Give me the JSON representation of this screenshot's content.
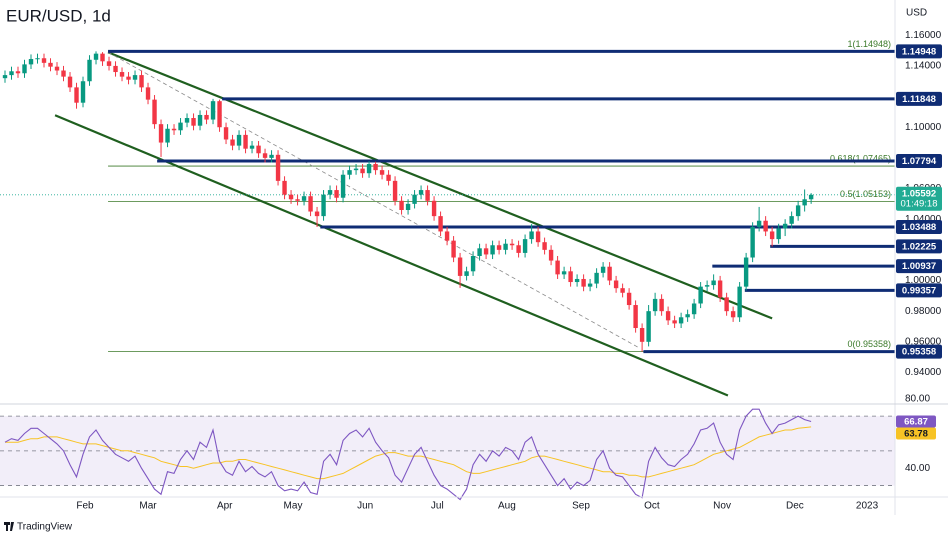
{
  "chart_data": [
    {
      "type": "candlestick",
      "title": "EUR/USD, 1d",
      "currency": "USD",
      "brand": "TradingView",
      "up_color": "#089981",
      "down_color": "#f23645",
      "xlim": [
        -0.77,
        136.9
      ],
      "xticks": [
        {
          "value": 12.3,
          "label": "Feb"
        },
        {
          "value": 22,
          "label": "Mar"
        },
        {
          "value": 33.8,
          "label": "Apr"
        },
        {
          "value": 44.3,
          "label": "May"
        },
        {
          "value": 55.4,
          "label": "Jun"
        },
        {
          "value": 66.5,
          "label": "Jul"
        },
        {
          "value": 77.2,
          "label": "Aug"
        },
        {
          "value": 88.6,
          "label": "Sep"
        },
        {
          "value": 99.5,
          "label": "Oct"
        },
        {
          "value": 110.3,
          "label": "Nov"
        },
        {
          "value": 121.5,
          "label": "Dec"
        },
        {
          "value": 132.6,
          "label": "2023"
        }
      ],
      "ylim": [
        0.924,
        1.183
      ],
      "yticks": [
        {
          "value": 1.16,
          "label": "1.16000"
        },
        {
          "value": 1.14,
          "label": "1.14000"
        },
        {
          "value": 1.1,
          "label": "1.10000"
        },
        {
          "value": 1.06,
          "label": "1.06000"
        },
        {
          "value": 1.04,
          "label": "1.04000"
        },
        {
          "value": 1.0,
          "label": "1.00000"
        },
        {
          "value": 0.98,
          "label": "0.98000"
        },
        {
          "value": 0.96,
          "label": "0.96000"
        },
        {
          "value": 0.94,
          "label": "0.94000"
        }
      ],
      "open": [
        1.132,
        1.134,
        1.1365,
        1.1352,
        1.141,
        1.1445,
        1.145,
        1.142,
        1.1395,
        1.137,
        1.133,
        1.126,
        1.116,
        1.13,
        1.144,
        1.148,
        1.143,
        1.14,
        1.136,
        1.133,
        1.131,
        1.134,
        1.126,
        1.118,
        1.102,
        1.09,
        1.099,
        1.098,
        1.103,
        1.106,
        1.101,
        1.108,
        1.105,
        1.117,
        1.1,
        1.092,
        1.088,
        1.095,
        1.086,
        1.088,
        1.083,
        1.08,
        1.082,
        1.065,
        1.056,
        1.053,
        1.052,
        1.055,
        1.045,
        1.042,
        1.056,
        1.059,
        1.054,
        1.069,
        1.072,
        1.073,
        1.07,
        1.076,
        1.072,
        1.069,
        1.065,
        1.052,
        1.046,
        1.05,
        1.056,
        1.059,
        1.052,
        1.042,
        1.032,
        1.026,
        1.015,
        1.003,
        1.006,
        1.016,
        1.021,
        1.017,
        1.023,
        1.02,
        1.024,
        1.023,
        1.018,
        1.027,
        1.032,
        1.025,
        1.02,
        1.013,
        1.004,
        1.006,
        0.999,
        1.001,
        0.996,
        0.998,
        1.005,
        1.009,
        1.0,
        0.995,
        0.992,
        0.984,
        0.969,
        0.96,
        0.98,
        0.988,
        0.98,
        0.974,
        0.972,
        0.976,
        0.978,
        0.985,
        0.996,
        0.997,
        1.0,
        0.989,
        0.98,
        0.976,
        0.996,
        1.015,
        1.035,
        1.039,
        1.032,
        1.027,
        1.034,
        1.037,
        1.042,
        1.049,
        1.053
      ],
      "high": [
        1.137,
        1.1395,
        1.1395,
        1.144,
        1.1475,
        1.148,
        1.148,
        1.145,
        1.1425,
        1.14,
        1.136,
        1.129,
        1.133,
        1.147,
        1.1495,
        1.149,
        1.146,
        1.143,
        1.139,
        1.136,
        1.137,
        1.137,
        1.129,
        1.121,
        1.105,
        1.102,
        1.102,
        1.106,
        1.109,
        1.109,
        1.111,
        1.111,
        1.1185,
        1.118,
        1.103,
        1.095,
        1.098,
        1.098,
        1.091,
        1.091,
        1.086,
        1.085,
        1.085,
        1.068,
        1.059,
        1.056,
        1.058,
        1.058,
        1.048,
        1.059,
        1.062,
        1.062,
        1.072,
        1.075,
        1.076,
        1.076,
        1.0779,
        1.0775,
        1.075,
        1.072,
        1.068,
        1.055,
        1.053,
        1.059,
        1.062,
        1.062,
        1.055,
        1.045,
        1.035,
        1.029,
        1.018,
        1.009,
        1.019,
        1.024,
        1.024,
        1.026,
        1.026,
        1.027,
        1.027,
        1.026,
        1.03,
        1.0368,
        1.035,
        1.028,
        1.023,
        1.016,
        1.009,
        1.009,
        1.004,
        1.004,
        1.001,
        1.008,
        1.012,
        1.012,
        1.003,
        0.998,
        0.995,
        0.987,
        0.972,
        0.984,
        0.992,
        0.991,
        0.983,
        0.977,
        0.979,
        0.981,
        0.988,
        0.999,
        1.0,
        1.004,
        1.003,
        0.992,
        0.983,
        0.999,
        1.018,
        1.038,
        1.048,
        1.042,
        1.035,
        1.037,
        1.04,
        1.045,
        1.052,
        1.0594,
        1.057
      ],
      "low": [
        1.129,
        1.131,
        1.1322,
        1.1322,
        1.138,
        1.1415,
        1.139,
        1.1365,
        1.134,
        1.13,
        1.123,
        1.1121,
        1.113,
        1.127,
        1.141,
        1.14,
        1.137,
        1.133,
        1.13,
        1.128,
        1.128,
        1.123,
        1.115,
        1.099,
        1.0806,
        1.087,
        1.095,
        1.095,
        1.1,
        1.098,
        1.098,
        1.102,
        1.102,
        1.097,
        1.089,
        1.085,
        1.085,
        1.083,
        1.083,
        1.08,
        1.077,
        1.077,
        1.062,
        1.053,
        1.05,
        1.049,
        1.049,
        1.042,
        1.0349,
        1.039,
        1.053,
        1.051,
        1.051,
        1.066,
        1.069,
        1.067,
        1.067,
        1.069,
        1.066,
        1.062,
        1.049,
        1.043,
        1.043,
        1.047,
        1.053,
        1.049,
        1.039,
        1.029,
        1.023,
        1.012,
        0.9952,
        1.0,
        1.003,
        1.013,
        1.014,
        1.014,
        1.017,
        1.017,
        1.02,
        1.015,
        1.015,
        1.024,
        1.022,
        1.017,
        1.01,
        1.001,
        1.001,
        0.996,
        0.996,
        0.993,
        0.993,
        0.995,
        1.002,
        0.997,
        0.992,
        0.989,
        0.981,
        0.966,
        0.9536,
        0.957,
        0.977,
        0.977,
        0.971,
        0.969,
        0.969,
        0.973,
        0.975,
        0.982,
        0.993,
        0.994,
        0.986,
        0.977,
        0.973,
        0.973,
        0.9935,
        1.012,
        1.032,
        1.029,
        1.0222,
        1.024,
        1.029,
        1.034,
        1.039,
        1.045,
        1.05
      ],
      "close": [
        1.134,
        1.1365,
        1.1352,
        1.141,
        1.1445,
        1.145,
        1.142,
        1.1395,
        1.137,
        1.133,
        1.126,
        1.116,
        1.13,
        1.144,
        1.148,
        1.143,
        1.14,
        1.136,
        1.133,
        1.131,
        1.134,
        1.126,
        1.118,
        1.102,
        1.09,
        1.099,
        1.098,
        1.103,
        1.106,
        1.101,
        1.108,
        1.105,
        1.117,
        1.1,
        1.092,
        1.088,
        1.095,
        1.086,
        1.088,
        1.083,
        1.08,
        1.082,
        1.065,
        1.056,
        1.053,
        1.052,
        1.055,
        1.045,
        1.042,
        1.056,
        1.059,
        1.054,
        1.069,
        1.072,
        1.073,
        1.07,
        1.076,
        1.072,
        1.069,
        1.065,
        1.052,
        1.046,
        1.05,
        1.056,
        1.059,
        1.052,
        1.042,
        1.032,
        1.026,
        1.015,
        1.003,
        1.006,
        1.016,
        1.021,
        1.017,
        1.023,
        1.02,
        1.024,
        1.023,
        1.018,
        1.027,
        1.032,
        1.025,
        1.02,
        1.013,
        1.004,
        1.006,
        0.999,
        1.001,
        0.996,
        0.998,
        1.005,
        1.009,
        1.0,
        0.995,
        0.992,
        0.984,
        0.969,
        0.96,
        0.98,
        0.988,
        0.98,
        0.974,
        0.972,
        0.976,
        0.978,
        0.985,
        0.996,
        0.997,
        1.0,
        0.989,
        0.98,
        0.976,
        0.996,
        1.015,
        1.035,
        1.039,
        1.032,
        1.027,
        1.034,
        1.037,
        1.042,
        1.049,
        1.053,
        1.0559
      ],
      "level_color": "#0f2c74",
      "levels": [
        {
          "value": 1.14948,
          "from": 15.85
        },
        {
          "value": 1.11848,
          "from": 33.4
        },
        {
          "value": 1.07794,
          "from": 23.4
        },
        {
          "value": 1.03488,
          "from": 48.5
        },
        {
          "value": 1.02225,
          "from": 117.7
        },
        {
          "value": 1.00937,
          "from": 108.8
        },
        {
          "value": 0.99357,
          "from": 113.8
        },
        {
          "value": 0.95358,
          "from": 98.2
        }
      ],
      "fib_color": "#3b7a2a",
      "fib": [
        {
          "value": 1.14948,
          "label": "1(1.14948)",
          "from": 15.85
        },
        {
          "value": 1.07465,
          "label": "0.618(1.07465)",
          "from": 15.85
        },
        {
          "value": 1.05153,
          "label": "0.5(1.05153)",
          "from": 15.85
        },
        {
          "value": 0.95358,
          "label": "0(0.95358)",
          "from": 15.85
        }
      ],
      "trendline_color": "#1f5f1f",
      "trendlines": [
        {
          "style": "solid",
          "points": [
            [
              15.85,
              1.1489
            ],
            [
              118,
              0.9753
            ]
          ]
        },
        {
          "style": "solid",
          "points": [
            [
              7.7,
              1.1078
            ],
            [
              111.2,
              0.925
            ]
          ]
        },
        {
          "style": "dashed",
          "points": [
            [
              15.85,
              1.1489
            ],
            [
              97.7,
              0.9557
            ]
          ]
        }
      ],
      "last": {
        "value": 1.05592,
        "countdown": "01:49:18",
        "color": "#22ab94"
      }
    },
    {
      "type": "line",
      "ylim": [
        24,
        81
      ],
      "yticks": [
        {
          "value": 80,
          "label": "80.00"
        },
        {
          "value": 40,
          "label": "40.00"
        }
      ],
      "hlines": [
        70,
        50,
        30
      ],
      "band": [
        30,
        70
      ],
      "series": [
        {
          "color": "#7e57c2",
          "values": [
            55,
            57,
            56,
            60,
            63,
            63,
            60,
            57,
            54,
            50,
            42,
            35,
            48,
            58,
            62,
            56,
            52,
            48,
            46,
            44,
            47,
            40,
            34,
            28,
            25,
            38,
            37,
            45,
            50,
            45,
            55,
            52,
            62,
            44,
            38,
            36,
            44,
            38,
            41,
            37,
            35,
            38,
            30,
            27,
            28,
            27,
            32,
            26,
            25,
            44,
            48,
            42,
            56,
            60,
            62,
            58,
            63,
            55,
            50,
            46,
            36,
            32,
            40,
            48,
            52,
            44,
            36,
            30,
            28,
            25,
            22,
            28,
            42,
            48,
            44,
            50,
            47,
            52,
            50,
            45,
            55,
            58,
            48,
            42,
            36,
            30,
            34,
            28,
            32,
            30,
            33,
            45,
            50,
            40,
            36,
            35,
            30,
            25,
            23,
            44,
            52,
            46,
            42,
            41,
            45,
            48,
            54,
            62,
            63,
            66,
            55,
            48,
            45,
            62,
            70,
            74,
            74,
            66,
            60,
            65,
            66,
            68,
            70,
            68,
            66.87
          ]
        },
        {
          "color": "#f7c325",
          "values": [
            55,
            55,
            55,
            56,
            57,
            57,
            58,
            58,
            58,
            57,
            56,
            55,
            54,
            54,
            54,
            53,
            52,
            51,
            50,
            50,
            49,
            48,
            47,
            46,
            44,
            43,
            42,
            41,
            41,
            40,
            41,
            42,
            43,
            43,
            44,
            44,
            45,
            45,
            44,
            43,
            42,
            41,
            40,
            39,
            38,
            37,
            36,
            35,
            34,
            34,
            35,
            36,
            37,
            39,
            41,
            43,
            45,
            47,
            48,
            49,
            49,
            48,
            47,
            47,
            47,
            46,
            45,
            44,
            43,
            42,
            40,
            38,
            37,
            37,
            38,
            39,
            40,
            41,
            42,
            43,
            44,
            46,
            47,
            47,
            46,
            45,
            44,
            43,
            42,
            41,
            40,
            39,
            38,
            38,
            37,
            37,
            36,
            36,
            35,
            35,
            36,
            37,
            38,
            39,
            40,
            41,
            42,
            44,
            46,
            48,
            49,
            50,
            51,
            52,
            54,
            56,
            58,
            59,
            60,
            61,
            62,
            62,
            63,
            63.4,
            63.78
          ]
        }
      ]
    }
  ]
}
